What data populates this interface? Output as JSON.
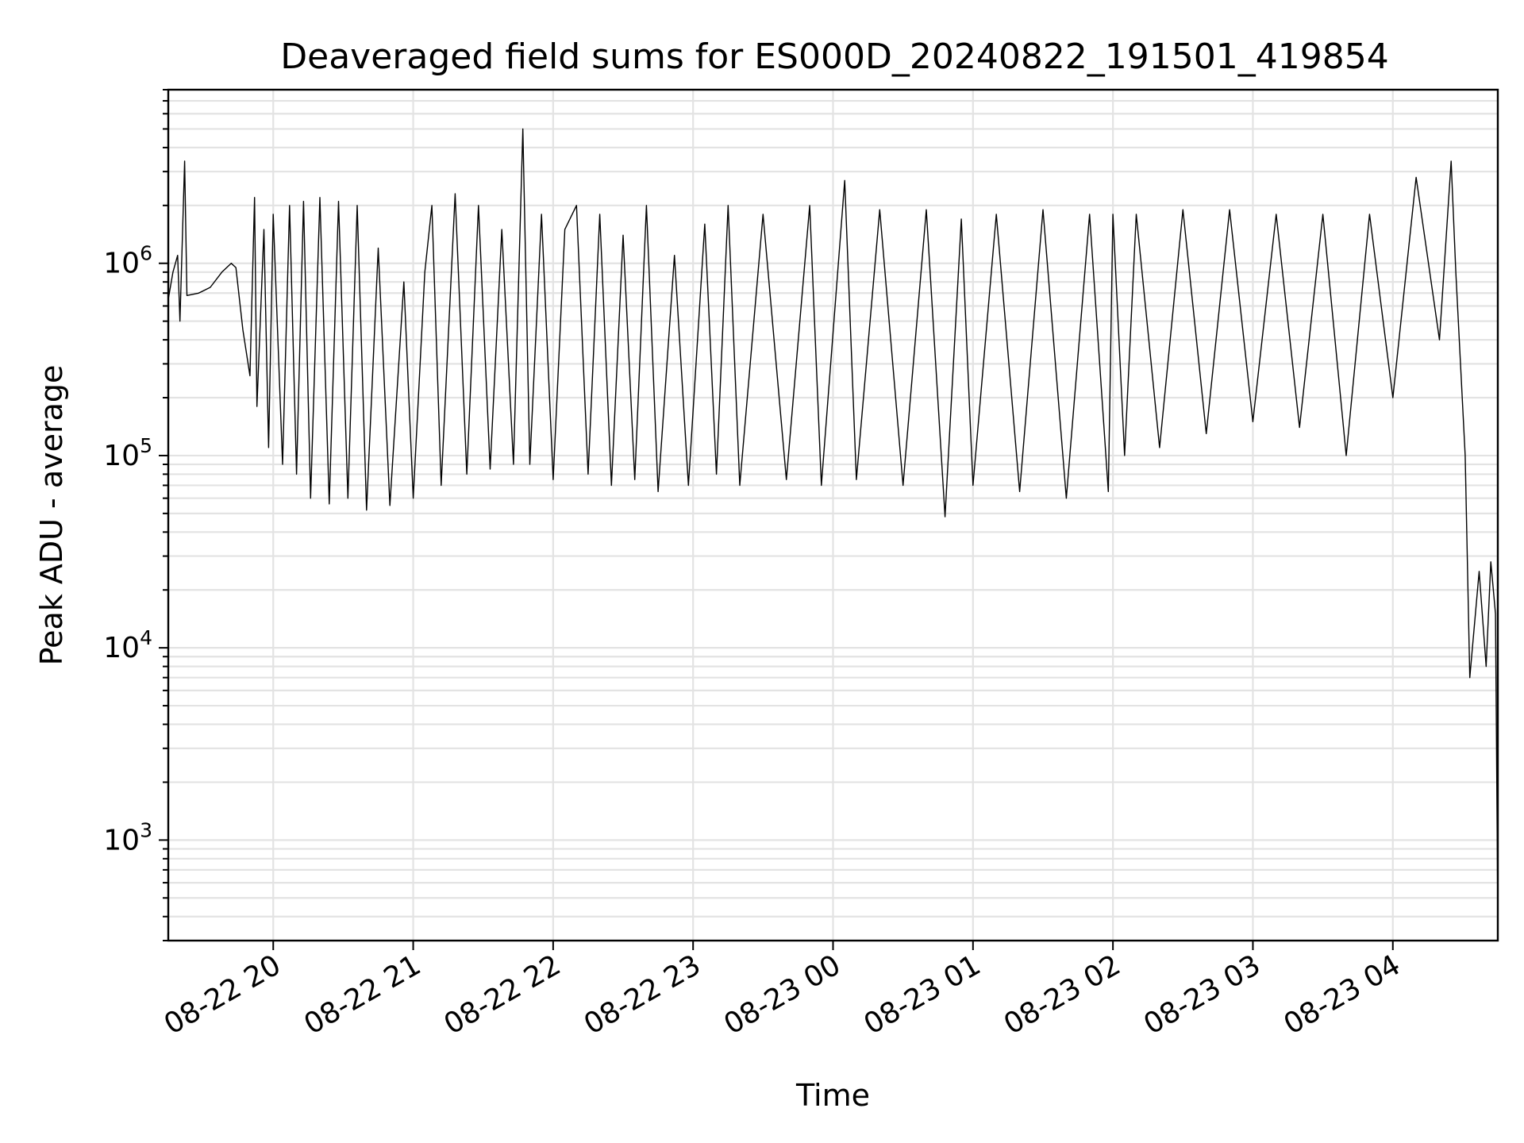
{
  "chart_data": {
    "type": "line",
    "title": "Deaveraged field sums for ES000D_20240822_191501_419854",
    "xlabel": "Time",
    "ylabel": "Peak ADU - average",
    "yscale": "log",
    "ylim": [
      300,
      8000000
    ],
    "xlim": [
      "2024-08-22 19:15",
      "2024-08-23 04:45"
    ],
    "grid": true,
    "x_ticks": [
      {
        "time": "2024-08-22 20:00",
        "label": "08-22 20"
      },
      {
        "time": "2024-08-22 21:00",
        "label": "08-22 21"
      },
      {
        "time": "2024-08-22 22:00",
        "label": "08-22 22"
      },
      {
        "time": "2024-08-22 23:00",
        "label": "08-22 23"
      },
      {
        "time": "2024-08-23 00:00",
        "label": "08-23 00"
      },
      {
        "time": "2024-08-23 01:00",
        "label": "08-23 01"
      },
      {
        "time": "2024-08-23 02:00",
        "label": "08-23 02"
      },
      {
        "time": "2024-08-23 03:00",
        "label": "08-23 03"
      },
      {
        "time": "2024-08-23 04:00",
        "label": "08-23 04"
      }
    ],
    "y_ticks": [
      {
        "value": 1000,
        "base": "10",
        "exp": "3"
      },
      {
        "value": 10000,
        "base": "10",
        "exp": "4"
      },
      {
        "value": 100000,
        "base": "10",
        "exp": "5"
      },
      {
        "value": 1000000,
        "base": "10",
        "exp": "6"
      }
    ],
    "series": [
      {
        "color": "#000000",
        "points": [
          [
            "2024-08-22 19:15",
            650000
          ],
          [
            "2024-08-22 19:17",
            900000
          ],
          [
            "2024-08-22 19:19",
            1100000
          ],
          [
            "2024-08-22 19:20",
            500000
          ],
          [
            "2024-08-22 19:22",
            3400000
          ],
          [
            "2024-08-22 19:23",
            680000
          ],
          [
            "2024-08-22 19:28",
            700000
          ],
          [
            "2024-08-22 19:33",
            750000
          ],
          [
            "2024-08-22 19:38",
            900000
          ],
          [
            "2024-08-22 19:42",
            1000000
          ],
          [
            "2024-08-22 19:44",
            950000
          ],
          [
            "2024-08-22 19:47",
            450000
          ],
          [
            "2024-08-22 19:50",
            260000
          ],
          [
            "2024-08-22 19:52",
            2200000
          ],
          [
            "2024-08-22 19:53",
            180000
          ],
          [
            "2024-08-22 19:56",
            1500000
          ],
          [
            "2024-08-22 19:58",
            110000
          ],
          [
            "2024-08-22 20:00",
            1800000
          ],
          [
            "2024-08-22 20:04",
            90000
          ],
          [
            "2024-08-22 20:07",
            2000000
          ],
          [
            "2024-08-22 20:10",
            80000
          ],
          [
            "2024-08-22 20:13",
            2100000
          ],
          [
            "2024-08-22 20:16",
            60000
          ],
          [
            "2024-08-22 20:20",
            2200000
          ],
          [
            "2024-08-22 20:24",
            56000
          ],
          [
            "2024-08-22 20:28",
            2100000
          ],
          [
            "2024-08-22 20:32",
            60000
          ],
          [
            "2024-08-22 20:36",
            2000000
          ],
          [
            "2024-08-22 20:40",
            52000
          ],
          [
            "2024-08-22 20:45",
            1200000
          ],
          [
            "2024-08-22 20:50",
            55000
          ],
          [
            "2024-08-22 20:56",
            800000
          ],
          [
            "2024-08-22 21:00",
            60000
          ],
          [
            "2024-08-22 21:05",
            900000
          ],
          [
            "2024-08-22 21:08",
            2000000
          ],
          [
            "2024-08-22 21:12",
            70000
          ],
          [
            "2024-08-22 21:18",
            2300000
          ],
          [
            "2024-08-22 21:23",
            80000
          ],
          [
            "2024-08-22 21:28",
            2000000
          ],
          [
            "2024-08-22 21:33",
            85000
          ],
          [
            "2024-08-22 21:38",
            1500000
          ],
          [
            "2024-08-22 21:43",
            90000
          ],
          [
            "2024-08-22 21:47",
            5000000
          ],
          [
            "2024-08-22 21:50",
            90000
          ],
          [
            "2024-08-22 21:55",
            1800000
          ],
          [
            "2024-08-22 22:00",
            75000
          ],
          [
            "2024-08-22 22:05",
            1500000
          ],
          [
            "2024-08-22 22:10",
            2000000
          ],
          [
            "2024-08-22 22:15",
            80000
          ],
          [
            "2024-08-22 22:20",
            1800000
          ],
          [
            "2024-08-22 22:25",
            70000
          ],
          [
            "2024-08-22 22:30",
            1400000
          ],
          [
            "2024-08-22 22:35",
            75000
          ],
          [
            "2024-08-22 22:40",
            2000000
          ],
          [
            "2024-08-22 22:45",
            65000
          ],
          [
            "2024-08-22 22:52",
            1100000
          ],
          [
            "2024-08-22 22:58",
            70000
          ],
          [
            "2024-08-22 23:05",
            1600000
          ],
          [
            "2024-08-22 23:10",
            80000
          ],
          [
            "2024-08-22 23:15",
            2000000
          ],
          [
            "2024-08-22 23:20",
            70000
          ],
          [
            "2024-08-22 23:30",
            1800000
          ],
          [
            "2024-08-22 23:40",
            75000
          ],
          [
            "2024-08-22 23:50",
            2000000
          ],
          [
            "2024-08-22 23:55",
            70000
          ],
          [
            "2024-08-23 00:05",
            2700000
          ],
          [
            "2024-08-23 00:10",
            75000
          ],
          [
            "2024-08-23 00:20",
            1900000
          ],
          [
            "2024-08-23 00:30",
            70000
          ],
          [
            "2024-08-23 00:40",
            1900000
          ],
          [
            "2024-08-23 00:48",
            48000
          ],
          [
            "2024-08-23 00:55",
            1700000
          ],
          [
            "2024-08-23 01:00",
            70000
          ],
          [
            "2024-08-23 01:10",
            1800000
          ],
          [
            "2024-08-23 01:20",
            65000
          ],
          [
            "2024-08-23 01:30",
            1900000
          ],
          [
            "2024-08-23 01:40",
            60000
          ],
          [
            "2024-08-23 01:50",
            1800000
          ],
          [
            "2024-08-23 01:58",
            65000
          ],
          [
            "2024-08-23 02:00",
            1800000
          ],
          [
            "2024-08-23 02:05",
            100000
          ],
          [
            "2024-08-23 02:10",
            1800000
          ],
          [
            "2024-08-23 02:20",
            110000
          ],
          [
            "2024-08-23 02:30",
            1900000
          ],
          [
            "2024-08-23 02:40",
            130000
          ],
          [
            "2024-08-23 02:50",
            1900000
          ],
          [
            "2024-08-23 03:00",
            150000
          ],
          [
            "2024-08-23 03:10",
            1800000
          ],
          [
            "2024-08-23 03:20",
            140000
          ],
          [
            "2024-08-23 03:30",
            1800000
          ],
          [
            "2024-08-23 03:40",
            100000
          ],
          [
            "2024-08-23 03:50",
            1800000
          ],
          [
            "2024-08-23 04:00",
            200000
          ],
          [
            "2024-08-23 04:10",
            2800000
          ],
          [
            "2024-08-23 04:20",
            400000
          ],
          [
            "2024-08-23 04:25",
            3400000
          ],
          [
            "2024-08-23 04:27",
            900000
          ],
          [
            "2024-08-23 04:31",
            100000
          ],
          [
            "2024-08-23 04:33",
            7000
          ],
          [
            "2024-08-23 04:37",
            25000
          ],
          [
            "2024-08-23 04:40",
            8000
          ],
          [
            "2024-08-23 04:42",
            28000
          ],
          [
            "2024-08-23 04:44",
            15000
          ],
          [
            "2024-08-23 04:45",
            400
          ]
        ]
      }
    ]
  }
}
